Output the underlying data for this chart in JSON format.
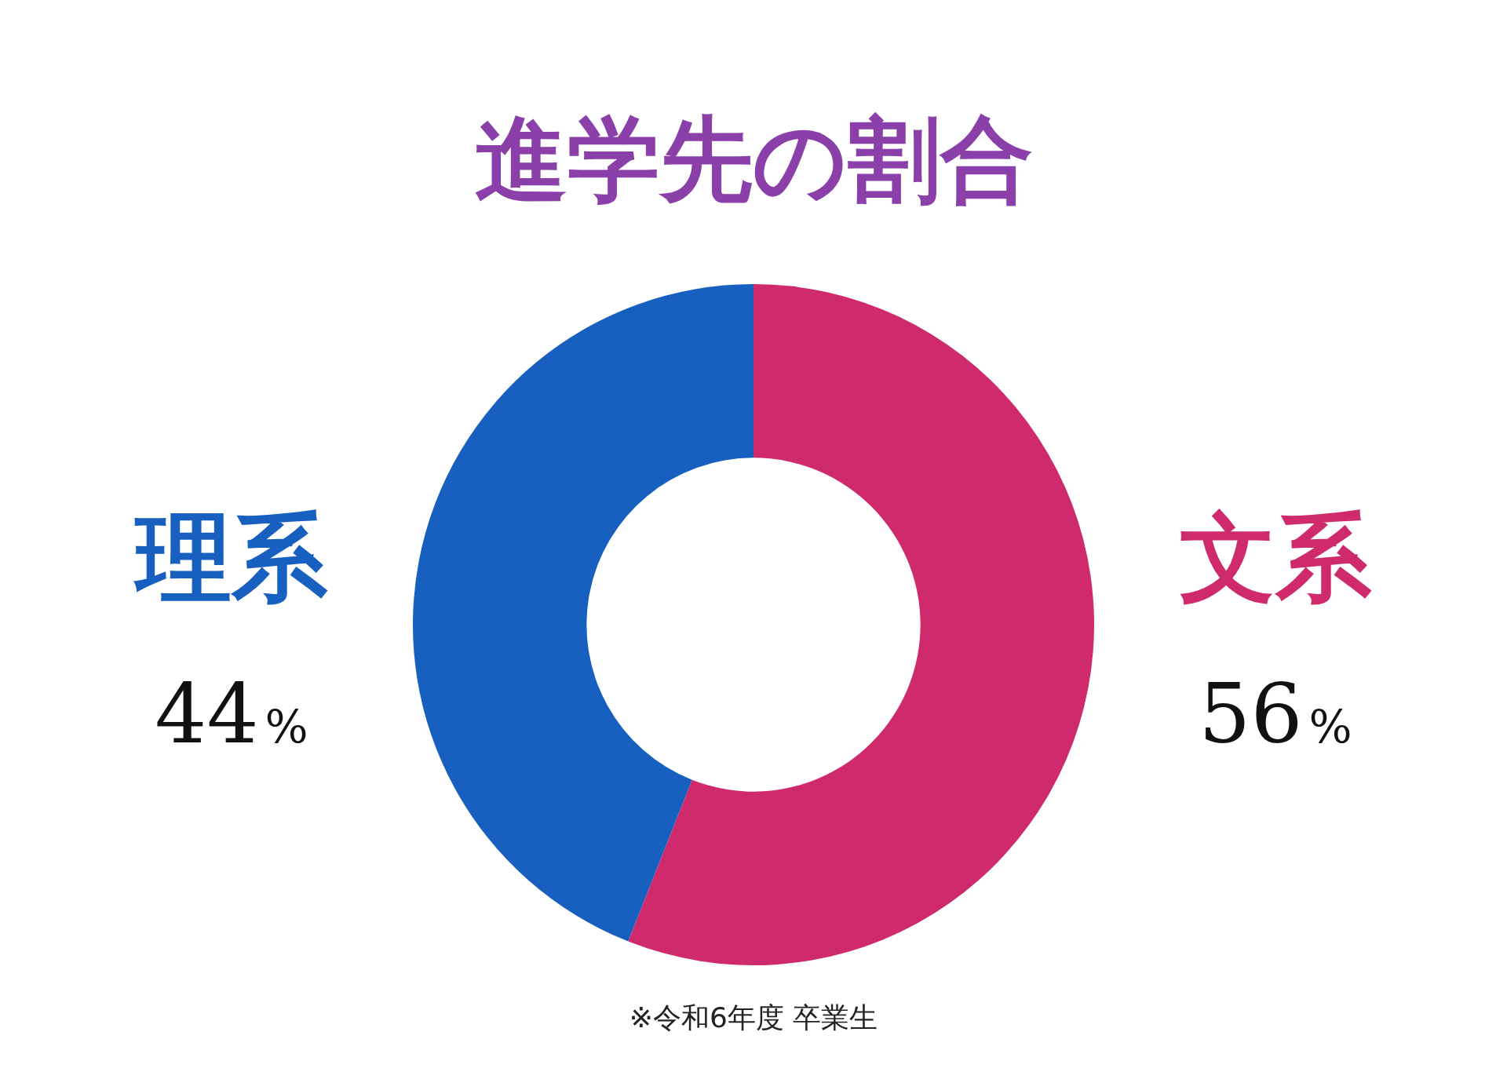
{
  "chart_data": {
    "type": "donut",
    "title": "進学先の割合",
    "categories": [
      "文系",
      "理系"
    ],
    "values": [
      56,
      44
    ],
    "colors": [
      "#cf2a6c",
      "#1860c0"
    ],
    "value_labels": [
      "56%",
      "44%"
    ],
    "legend": false,
    "annotations": [
      "※令和6年度 卒業生"
    ]
  }
}
